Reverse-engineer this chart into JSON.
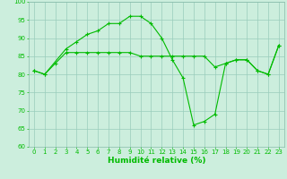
{
  "line1_x": [
    0,
    1,
    3,
    4,
    5,
    6,
    7,
    8,
    9,
    10,
    11,
    12,
    13,
    14,
    15,
    16,
    17,
    18,
    19,
    20,
    21,
    22,
    23
  ],
  "line1_y": [
    81,
    80,
    87,
    89,
    91,
    92,
    94,
    94,
    96,
    96,
    94,
    90,
    84,
    79,
    66,
    67,
    69,
    83,
    84,
    84,
    81,
    80,
    88
  ],
  "line2_x": [
    0,
    1,
    2,
    3,
    4,
    5,
    6,
    7,
    8,
    9,
    10,
    11,
    12,
    13,
    14,
    15,
    16,
    17,
    18,
    19,
    20,
    21,
    22,
    23
  ],
  "line2_y": [
    81,
    80,
    83,
    86,
    86,
    86,
    86,
    86,
    86,
    86,
    85,
    85,
    85,
    85,
    85,
    85,
    85,
    82,
    83,
    84,
    84,
    81,
    80,
    88
  ],
  "line_color": "#00bb00",
  "marker": "+",
  "markersize": 3,
  "linewidth": 0.8,
  "markeredgewidth": 0.8,
  "xlabel": "Humidité relative (%)",
  "xlabel_color": "#00bb00",
  "background_color": "#cceedd",
  "grid_color": "#99ccbb",
  "xlim": [
    -0.5,
    23.5
  ],
  "ylim": [
    60,
    100
  ],
  "yticks": [
    60,
    65,
    70,
    75,
    80,
    85,
    90,
    95,
    100
  ],
  "xticks": [
    0,
    1,
    2,
    3,
    4,
    5,
    6,
    7,
    8,
    9,
    10,
    11,
    12,
    13,
    14,
    15,
    16,
    17,
    18,
    19,
    20,
    21,
    22,
    23
  ],
  "tick_fontsize": 5,
  "xlabel_fontsize": 6.5
}
